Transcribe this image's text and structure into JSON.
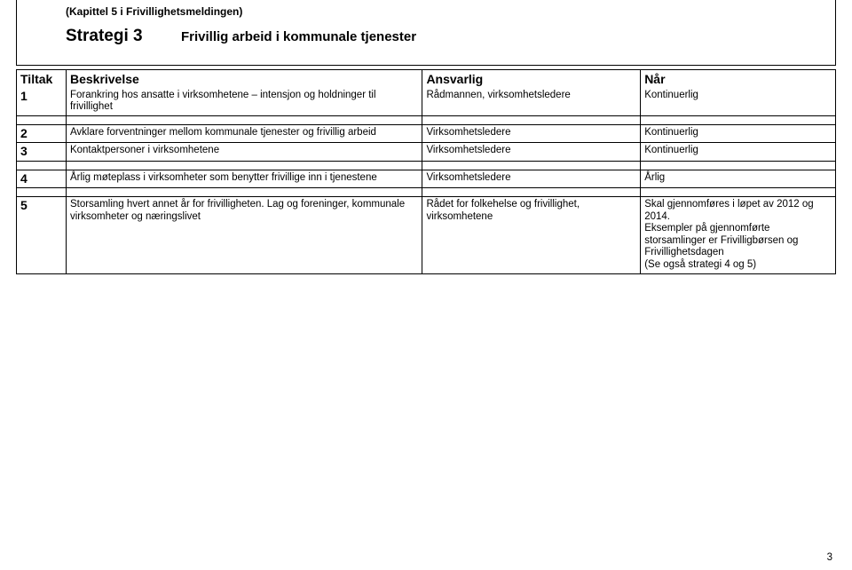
{
  "header": {
    "chapter": "(Kapittel 5 i Frivillighetsmeldingen)",
    "strategy_label": "Strategi 3",
    "strategy_title": "Frivillig arbeid i kommunale tjenester"
  },
  "columns": {
    "tiltak": "Tiltak",
    "beskrivelse": "Beskrivelse",
    "ansvarlig": "Ansvarlig",
    "nar": "Når"
  },
  "rows": [
    {
      "num": "1",
      "beskrivelse": "Forankring hos ansatte i virksomhetene – intensjon og holdninger til frivillighet",
      "ansvarlig": "Rådmannen, virksomhetsledere",
      "nar": "Kontinuerlig"
    },
    {
      "num": "2",
      "beskrivelse": "Avklare forventninger mellom kommunale tjenester og frivillig arbeid",
      "ansvarlig": "Virksomhetsledere",
      "nar": "Kontinuerlig"
    },
    {
      "num": "3",
      "beskrivelse": "Kontaktpersoner i virksomhetene",
      "ansvarlig": "Virksomhetsledere",
      "nar": "Kontinuerlig"
    },
    {
      "num": "4",
      "beskrivelse": "Årlig møteplass i virksomheter som benytter frivillige inn i tjenestene",
      "ansvarlig": "Virksomhetsledere",
      "nar": "Årlig"
    },
    {
      "num": "5",
      "beskrivelse": "Storsamling hvert annet år for frivilligheten. Lag og foreninger, kommunale virksomheter og næringslivet",
      "ansvarlig": "Rådet for folkehelse og frivillighet, virksomhetene",
      "nar": "Skal gjennomføres i løpet av 2012 og 2014.\nEksempler på gjennomførte storsamlinger er Frivilligbørsen og Frivillighetsdagen\n(Se også strategi 4 og 5)"
    }
  ],
  "page_number": "3",
  "colors": {
    "text": "#000000",
    "background": "#ffffff",
    "border": "#000000"
  }
}
